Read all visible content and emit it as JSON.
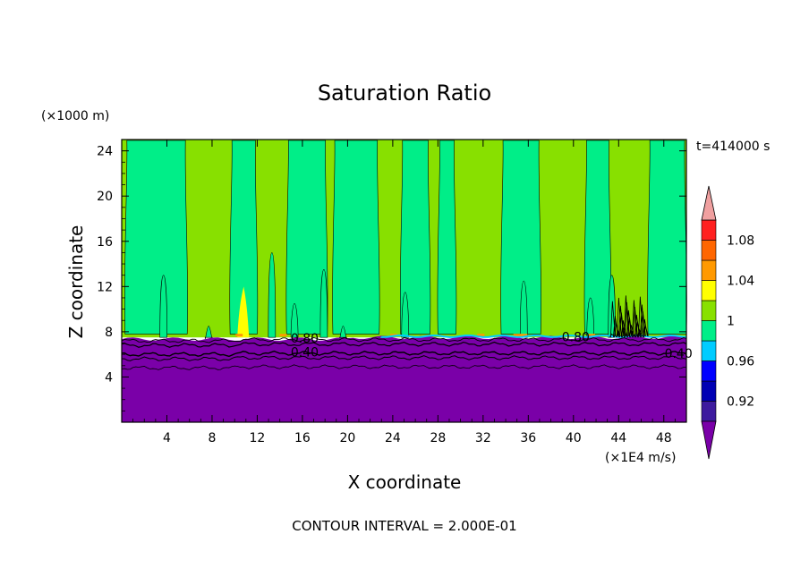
{
  "chart_data": {
    "type": "heatmap",
    "title": "Saturation Ratio",
    "xlabel": "X coordinate",
    "ylabel": "Z coordinate",
    "x_unit": "(×1E4 m/s)",
    "z_unit": "(×1000 m)",
    "time_label": "t=414000 s",
    "footer": "CONTOUR INTERVAL = 2.000E-01",
    "xlim": [
      0,
      50
    ],
    "ylim": [
      0,
      25
    ],
    "x_ticks": [
      "4",
      "8",
      "12",
      "16",
      "20",
      "24",
      "28",
      "32",
      "36",
      "40",
      "44",
      "48"
    ],
    "y_ticks": [
      "4",
      "8",
      "12",
      "16",
      "20",
      "24"
    ],
    "x_tick_values": [
      4,
      8,
      12,
      16,
      20,
      24,
      28,
      32,
      36,
      40,
      44,
      48
    ],
    "y_tick_values": [
      4,
      8,
      12,
      16,
      20,
      24
    ],
    "contour_labels": [
      "0.80",
      "0.40",
      "0.80",
      "0.40"
    ],
    "colorbar": {
      "labels": [
        "1.08",
        "1.04",
        "1",
        "0.96",
        "0.92"
      ],
      "label_values": [
        1.08,
        1.04,
        1.0,
        0.96,
        0.92
      ],
      "levels": [
        {
          "from": 0.9,
          "to": 0.92,
          "color": "#3d1a9e"
        },
        {
          "from": 0.92,
          "to": 0.94,
          "color": "#0000b4"
        },
        {
          "from": 0.94,
          "to": 0.96,
          "color": "#0000ff"
        },
        {
          "from": 0.96,
          "to": 0.98,
          "color": "#00ccff"
        },
        {
          "from": 0.98,
          "to": 1.0,
          "color": "#00ee88"
        },
        {
          "from": 1.0,
          "to": 1.02,
          "color": "#88e000"
        },
        {
          "from": 1.02,
          "to": 1.04,
          "color": "#ffff00"
        },
        {
          "from": 1.04,
          "to": 1.06,
          "color": "#ff9900"
        },
        {
          "from": 1.06,
          "to": 1.08,
          "color": "#ff6600"
        },
        {
          "from": 1.08,
          "to": 1.1,
          "color": "#ff2020"
        }
      ],
      "under_color": "#7a00a8",
      "over_color": "#f0a0a0"
    },
    "regions": {
      "dry_layer_top_z": 7.5,
      "dry_color": "#7a00a8",
      "saturated_color": "#00ee88",
      "supersaturated_color": "#88e000",
      "green_columns_x": [
        [
          0.3,
          5.8
        ],
        [
          9.6,
          12.0
        ],
        [
          14.6,
          18.2
        ],
        [
          18.7,
          22.8
        ],
        [
          24.7,
          27.3
        ],
        [
          28.0,
          29.6
        ],
        [
          33.6,
          37.1
        ],
        [
          41.0,
          43.3
        ],
        [
          46.6,
          50.0
        ]
      ]
    }
  }
}
